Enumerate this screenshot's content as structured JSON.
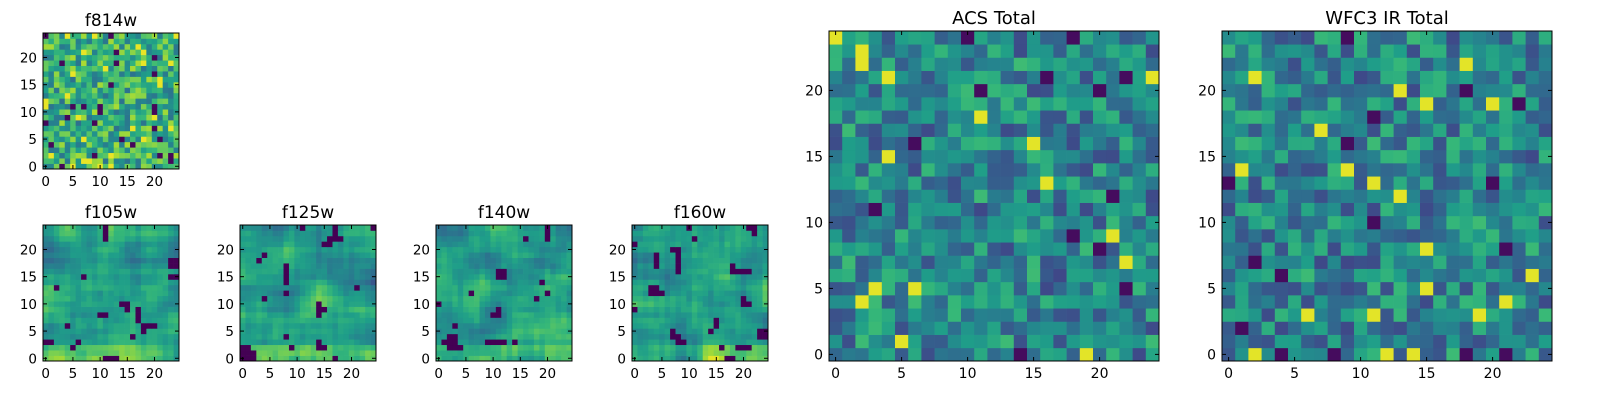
{
  "colors": {
    "background": "#ffffff",
    "colormap": "viridis",
    "low": "#440154",
    "high": "#fde725"
  },
  "chart_data": [
    {
      "type": "heatmap",
      "title": "f814w",
      "grid_size": [
        25,
        25
      ],
      "pattern": "noise",
      "seed": 11,
      "xlim": [
        0,
        24
      ],
      "ylim": [
        0,
        24
      ],
      "x_ticks": [
        0,
        5,
        10,
        15,
        20
      ],
      "y_ticks": [
        0,
        5,
        10,
        15,
        20
      ],
      "xlabel": "",
      "ylabel": ""
    },
    {
      "type": "heatmap",
      "title": "f105w",
      "grid_size": [
        25,
        25
      ],
      "pattern": "smooth_masked",
      "seed": 23,
      "xlim": [
        0,
        24
      ],
      "ylim": [
        0,
        24
      ],
      "x_ticks": [
        0,
        5,
        10,
        15,
        20
      ],
      "y_ticks": [
        0,
        5,
        10,
        15,
        20
      ],
      "xlabel": "",
      "ylabel": ""
    },
    {
      "type": "heatmap",
      "title": "f125w",
      "grid_size": [
        25,
        25
      ],
      "pattern": "smooth_masked",
      "seed": 37,
      "xlim": [
        0,
        24
      ],
      "ylim": [
        0,
        24
      ],
      "x_ticks": [
        0,
        5,
        10,
        15,
        20
      ],
      "y_ticks": [
        0,
        5,
        10,
        15,
        20
      ],
      "xlabel": "",
      "ylabel": ""
    },
    {
      "type": "heatmap",
      "title": "f140w",
      "grid_size": [
        25,
        25
      ],
      "pattern": "smooth_masked",
      "seed": 41,
      "xlim": [
        0,
        24
      ],
      "ylim": [
        0,
        24
      ],
      "x_ticks": [
        0,
        5,
        10,
        15,
        20
      ],
      "y_ticks": [
        0,
        5,
        10,
        15,
        20
      ],
      "xlabel": "",
      "ylabel": ""
    },
    {
      "type": "heatmap",
      "title": "f160w",
      "grid_size": [
        25,
        25
      ],
      "pattern": "smooth_masked",
      "seed": 53,
      "xlim": [
        0,
        24
      ],
      "ylim": [
        0,
        24
      ],
      "x_ticks": [
        0,
        5,
        10,
        15,
        20
      ],
      "y_ticks": [
        0,
        5,
        10,
        15,
        20
      ],
      "xlabel": "",
      "ylabel": ""
    },
    {
      "type": "heatmap",
      "title": "ACS Total",
      "grid_size": [
        25,
        25
      ],
      "pattern": "noise_mid",
      "seed": 67,
      "xlim": [
        0,
        24
      ],
      "ylim": [
        0,
        24
      ],
      "x_ticks": [
        0,
        5,
        10,
        15,
        20
      ],
      "y_ticks": [
        0,
        5,
        10,
        15,
        20
      ],
      "xlabel": "",
      "ylabel": ""
    },
    {
      "type": "heatmap",
      "title": "WFC3 IR Total",
      "grid_size": [
        25,
        25
      ],
      "pattern": "noise_mid",
      "seed": 79,
      "xlim": [
        0,
        24
      ],
      "ylim": [
        0,
        24
      ],
      "x_ticks": [
        0,
        5,
        10,
        15,
        20
      ],
      "y_ticks": [
        0,
        5,
        10,
        15,
        20
      ],
      "xlabel": "",
      "ylabel": ""
    }
  ]
}
